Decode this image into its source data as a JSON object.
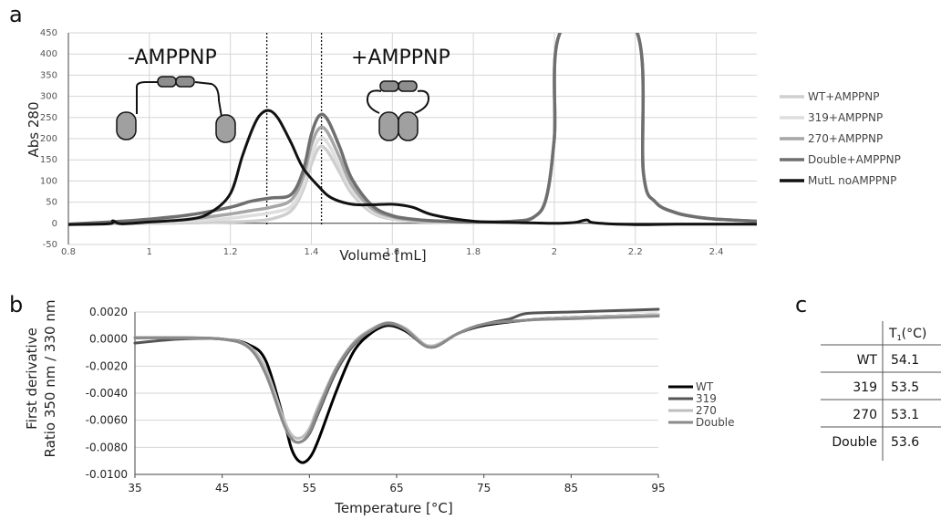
{
  "panels": {
    "a": "a",
    "b": "b",
    "c": "c"
  },
  "colors": {
    "wt_ampp": "#cfcfcf",
    "r319_ampp": "#dedede",
    "r270_ampp": "#a6a6a6",
    "double_ampp": "#6f6f6f",
    "mutl_no": "#111111",
    "wt": "#000000",
    "r319": "#555555",
    "r270": "#bdbdbd",
    "double": "#8a8a8a"
  },
  "chart_data": [
    {
      "type": "line",
      "xlabel": "Volume [mL]",
      "ylabel": "Abs 280",
      "xlim": [
        0.8,
        2.5
      ],
      "ylim": [
        -50,
        450
      ],
      "x_ticks": [
        0.8,
        1,
        1.2,
        1.4,
        1.6,
        1.8,
        2,
        2.2,
        2.4
      ],
      "x_tick_labels": [
        "0.8",
        "1",
        "1.2",
        "1.4",
        "1.6",
        "1.8",
        "2",
        "2.2",
        "2.4"
      ],
      "y_ticks": [
        -50,
        0,
        50,
        100,
        150,
        200,
        250,
        300,
        350,
        400,
        450
      ],
      "y_tick_labels": [
        "-50",
        "0",
        "50",
        "100",
        "150",
        "200",
        "250",
        "300",
        "350",
        "400",
        "450"
      ],
      "grid": true,
      "legend_position": "right",
      "annotations": {
        "minus": "-AMPPNP",
        "plus": "+AMPPNP"
      },
      "dashed_lines_x": [
        1.29,
        1.425
      ],
      "series": [
        {
          "name": "WT+AMPPNP",
          "color_key": "wt_ampp",
          "x": [
            0.8,
            0.9,
            1.0,
            1.1,
            1.2,
            1.25,
            1.3,
            1.35,
            1.38,
            1.4,
            1.42,
            1.44,
            1.47,
            1.5,
            1.55,
            1.6,
            1.65,
            1.7,
            1.8,
            1.9,
            1.95,
            1.98,
            2.0,
            2.02,
            2.2,
            2.22,
            2.25,
            2.3,
            2.35,
            2.4,
            2.5
          ],
          "y": [
            -2,
            -1,
            0,
            1,
            3,
            5,
            10,
            30,
            80,
            140,
            180,
            170,
            120,
            70,
            25,
            10,
            5,
            3,
            2,
            5,
            15,
            60,
            200,
            460,
            460,
            120,
            50,
            25,
            15,
            10,
            5
          ]
        },
        {
          "name": "319+AMPPNP",
          "color_key": "r319_ampp",
          "x": [
            0.8,
            0.9,
            1.0,
            1.1,
            1.2,
            1.25,
            1.3,
            1.35,
            1.38,
            1.4,
            1.42,
            1.44,
            1.47,
            1.5,
            1.55,
            1.6,
            1.65,
            1.7,
            1.8,
            1.9,
            1.95,
            1.98,
            2.0,
            2.02,
            2.2,
            2.22,
            2.25,
            2.3,
            2.35,
            2.4,
            2.5
          ],
          "y": [
            -2,
            0,
            2,
            5,
            12,
            18,
            25,
            40,
            90,
            160,
            200,
            190,
            135,
            80,
            30,
            12,
            6,
            4,
            2,
            5,
            15,
            60,
            200,
            460,
            460,
            120,
            50,
            25,
            15,
            10,
            5
          ]
        },
        {
          "name": "270+AMPPNP",
          "color_key": "r270_ampp",
          "x": [
            0.8,
            0.9,
            1.0,
            1.1,
            1.2,
            1.25,
            1.3,
            1.35,
            1.38,
            1.4,
            1.42,
            1.44,
            1.47,
            1.5,
            1.55,
            1.6,
            1.65,
            1.7,
            1.8,
            1.9,
            1.95,
            1.98,
            2.0,
            2.02,
            2.2,
            2.22,
            2.25,
            2.3,
            2.35,
            2.4,
            2.5
          ],
          "y": [
            -2,
            1,
            4,
            10,
            22,
            30,
            38,
            55,
            110,
            185,
            225,
            215,
            155,
            90,
            35,
            15,
            8,
            5,
            3,
            5,
            15,
            60,
            200,
            460,
            460,
            120,
            50,
            25,
            15,
            10,
            5
          ]
        },
        {
          "name": "Double+AMPPNP",
          "color_key": "double_ampp",
          "x": [
            0.8,
            0.9,
            1.0,
            1.1,
            1.2,
            1.25,
            1.3,
            1.35,
            1.38,
            1.4,
            1.42,
            1.44,
            1.47,
            1.5,
            1.55,
            1.6,
            1.65,
            1.7,
            1.8,
            1.9,
            1.95,
            1.98,
            2.0,
            2.02,
            2.2,
            2.22,
            2.25,
            2.3,
            2.35,
            2.4,
            2.5
          ],
          "y": [
            -2,
            3,
            10,
            20,
            38,
            52,
            60,
            68,
            125,
            210,
            255,
            245,
            180,
            105,
            42,
            18,
            10,
            6,
            3,
            5,
            15,
            60,
            200,
            460,
            460,
            120,
            50,
            25,
            15,
            10,
            5
          ]
        },
        {
          "name": "MutL noAMPPNP",
          "color_key": "mutl_no",
          "x": [
            0.8,
            0.9,
            0.91,
            0.93,
            1.0,
            1.1,
            1.15,
            1.2,
            1.23,
            1.26,
            1.28,
            1.3,
            1.32,
            1.35,
            1.38,
            1.42,
            1.45,
            1.5,
            1.55,
            1.6,
            1.65,
            1.7,
            1.8,
            1.9,
            2.0,
            2.05,
            2.08,
            2.1,
            2.2,
            2.3,
            2.4,
            2.5
          ],
          "y": [
            -3,
            -1,
            6,
            -1,
            3,
            10,
            25,
            70,
            160,
            235,
            262,
            265,
            245,
            190,
            130,
            85,
            60,
            45,
            44,
            45,
            38,
            20,
            5,
            2,
            0,
            2,
            8,
            1,
            -3,
            -2,
            -2,
            -2
          ]
        }
      ]
    },
    {
      "type": "line",
      "xlabel": "Temperature [°C]",
      "ylabel": [
        "First derivative",
        "Ratio 350 nm / 330 nm"
      ],
      "xlim": [
        35,
        95
      ],
      "ylim": [
        -0.01,
        0.002
      ],
      "x_ticks": [
        35,
        45,
        55,
        65,
        75,
        85,
        95
      ],
      "x_tick_labels": [
        "35",
        "45",
        "55",
        "65",
        "75",
        "85",
        "95"
      ],
      "y_ticks": [
        0.002,
        0,
        -0.002,
        -0.004,
        -0.006,
        -0.008,
        -0.01
      ],
      "y_tick_labels": [
        "0.0020",
        "0.0000",
        "-0.0020",
        "-0.0040",
        "-0.0060",
        "-0.0080",
        "-0.0100"
      ],
      "grid": true,
      "legend_position": "right",
      "series": [
        {
          "name": "WT",
          "color_key": "wt",
          "x": [
            35,
            40,
            45,
            48,
            50,
            52,
            53,
            54,
            55,
            56,
            58,
            60,
            62,
            64,
            66,
            68,
            69,
            70,
            72,
            75,
            80,
            85,
            90,
            95
          ],
          "y": [
            0.0001,
            0.0001,
            0.0,
            -0.0004,
            -0.0016,
            -0.0058,
            -0.0082,
            -0.0091,
            -0.0088,
            -0.0075,
            -0.004,
            -0.001,
            0.0004,
            0.001,
            0.0006,
            -0.0004,
            -0.0006,
            -0.0004,
            0.0004,
            0.001,
            0.0014,
            0.0016,
            0.0017,
            0.0018
          ]
        },
        {
          "name": "319",
          "color_key": "r319",
          "x": [
            35,
            40,
            45,
            48,
            50,
            52,
            53,
            54,
            55,
            56,
            58,
            60,
            62,
            64,
            66,
            68,
            69,
            70,
            72,
            75,
            78,
            80,
            85,
            90,
            95
          ],
          "y": [
            -0.0003,
            0.0,
            0.0,
            -0.0006,
            -0.0025,
            -0.006,
            -0.0074,
            -0.0076,
            -0.007,
            -0.0055,
            -0.0025,
            -0.0005,
            0.0006,
            0.0011,
            0.0007,
            -0.0004,
            -0.0006,
            -0.0004,
            0.0004,
            0.0011,
            0.0015,
            0.0019,
            0.002,
            0.0021,
            0.0022
          ]
        },
        {
          "name": "270",
          "color_key": "r270",
          "x": [
            35,
            40,
            45,
            48,
            50,
            52,
            53,
            54,
            55,
            56,
            58,
            60,
            62,
            64,
            66,
            68,
            69,
            70,
            72,
            75,
            80,
            85,
            90,
            95
          ],
          "y": [
            0.0001,
            0.0001,
            0.0,
            -0.0005,
            -0.0022,
            -0.0058,
            -0.0071,
            -0.0073,
            -0.0066,
            -0.005,
            -0.0022,
            -0.0003,
            0.0007,
            0.0012,
            0.0008,
            -0.0003,
            -0.0005,
            -0.0003,
            0.0004,
            0.0011,
            0.0014,
            0.0016,
            0.0017,
            0.0018
          ]
        },
        {
          "name": "Double",
          "color_key": "double",
          "x": [
            35,
            40,
            45,
            48,
            50,
            52,
            53,
            54,
            55,
            56,
            58,
            60,
            62,
            64,
            66,
            68,
            69,
            70,
            72,
            75,
            80,
            85,
            90,
            95
          ],
          "y": [
            0.0001,
            0.0001,
            0.0,
            -0.0006,
            -0.0026,
            -0.0062,
            -0.0074,
            -0.0076,
            -0.0069,
            -0.0053,
            -0.0023,
            -0.0004,
            0.0006,
            0.0012,
            0.0007,
            -0.0004,
            -0.0006,
            -0.0004,
            0.0004,
            0.0011,
            0.0014,
            0.0015,
            0.0016,
            0.0017
          ]
        }
      ]
    },
    {
      "type": "table",
      "header_main": "T",
      "header_sub": "1",
      "header_unit": "(°C)",
      "rows": [
        {
          "label": "WT",
          "value": "54.1"
        },
        {
          "label": "319",
          "value": "53.5"
        },
        {
          "label": "270",
          "value": "53.1"
        },
        {
          "label": "Double",
          "value": "53.6"
        }
      ]
    }
  ]
}
